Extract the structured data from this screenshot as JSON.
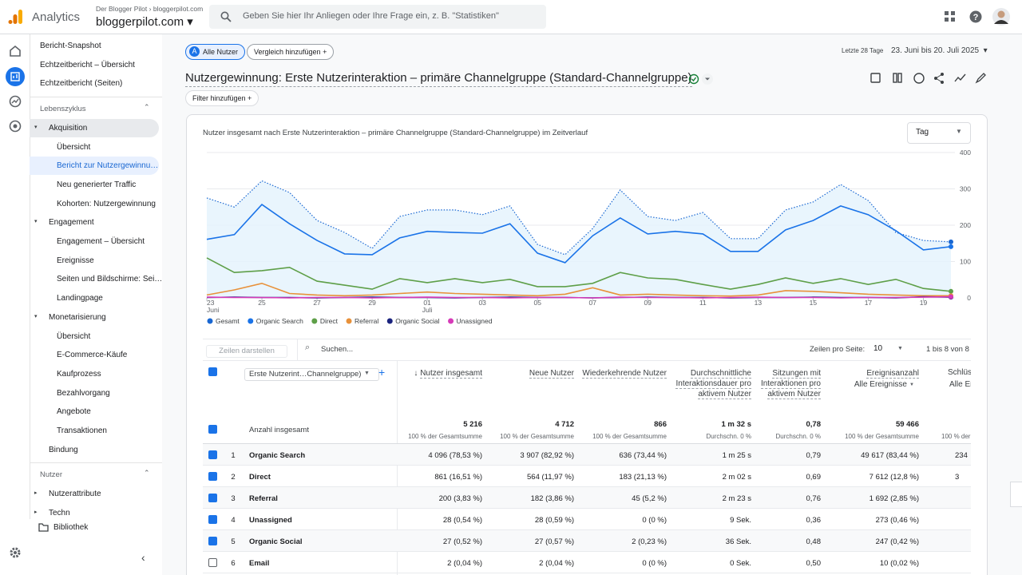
{
  "header": {
    "app": "Analytics",
    "account": "Der Blogger Pilot",
    "account_property": "bloggerpilot.com",
    "property": "bloggerpilot.com",
    "search_placeholder": "Geben Sie hier Ihr Anliegen oder Ihre Frage ein, z. B. \"Statistiken\""
  },
  "sidebar": {
    "top_items": [
      "Bericht-Snapshot",
      "Echtzeitbericht – Übersicht",
      "Echtzeitbericht (Seiten)"
    ],
    "sections": [
      {
        "title": "Lebenszyklus",
        "groups": [
          {
            "name": "Akquisition",
            "active": true,
            "items": [
              "Übersicht",
              "Bericht zur Nutzergewinnu…",
              "Neu generierter Traffic",
              "Kohorten: Nutzergewinnung"
            ],
            "selected_item": 1
          },
          {
            "name": "Engagement",
            "items": [
              "Engagement – Übersicht",
              "Ereignisse",
              "Seiten und Bildschirme: Sei…",
              "Landingpage"
            ]
          },
          {
            "name": "Monetarisierung",
            "items": [
              "Übersicht",
              "E-Commerce-Käufe",
              "Kaufprozess",
              "Bezahlvorgang",
              "Angebote",
              "Transaktionen"
            ]
          },
          {
            "name": "Bindung",
            "items": []
          }
        ]
      },
      {
        "title": "Nutzer",
        "groups": [
          {
            "name": "Nutzerattribute",
            "collapsed": true,
            "items": []
          },
          {
            "name": "Techn",
            "collapsed": true,
            "items": []
          }
        ]
      }
    ],
    "library": "Bibliothek"
  },
  "toolbar": {
    "segment_badge": "A",
    "segment": "Alle Nutzer",
    "compare": "Vergleich hinzufügen",
    "date_range_label": "Letzte 28 Tage",
    "date_range": "23. Juni bis 20. Juli 2025",
    "report_title": "Nutzergewinnung: Erste Nutzerinteraktion – primäre Channelgruppe (Standard-Channelgruppe)",
    "filter": "Filter hinzufügen"
  },
  "chart_data": {
    "type": "line",
    "title": "Nutzer insgesamt nach Erste Nutzerinteraktion – primäre Channelgruppe (Standard-Channelgruppe) im Zeitverlauf",
    "granularity": "Tag",
    "categories": [
      "23",
      null,
      "25",
      null,
      "27",
      null,
      "29",
      null,
      "01",
      null,
      "03",
      null,
      "05",
      null,
      "07",
      null,
      "09",
      null,
      "11",
      null,
      "13",
      null,
      "15",
      null,
      "17",
      null,
      "19",
      null
    ],
    "months": [
      "Juni",
      null,
      null,
      null,
      null,
      null,
      null,
      null,
      "Juli",
      null,
      null,
      null,
      null,
      null,
      null,
      null,
      null,
      null,
      null,
      null,
      null,
      null,
      null,
      null,
      null,
      null,
      null,
      null
    ],
    "ylim": [
      0,
      400
    ],
    "yticks": [
      0,
      100,
      200,
      300,
      400
    ],
    "grid": true,
    "series": [
      {
        "name": "Gesamt",
        "color": "#1967d2",
        "dotted": true,
        "area": true,
        "values": [
          275,
          250,
          322,
          290,
          213,
          180,
          136,
          224,
          242,
          242,
          229,
          253,
          147,
          119,
          191,
          297,
          224,
          213,
          235,
          163,
          163,
          242,
          264,
          312,
          268,
          180,
          158,
          154
        ]
      },
      {
        "name": "Organic Search",
        "color": "#1a73e8",
        "values": [
          161,
          174,
          257,
          204,
          158,
          121,
          119,
          165,
          183,
          180,
          178,
          204,
          123,
          97,
          171,
          220,
          176,
          183,
          176,
          128,
          128,
          187,
          213,
          253,
          229,
          185,
          132,
          141
        ]
      },
      {
        "name": "Direct",
        "color": "#5e9f48",
        "values": [
          110,
          70,
          75,
          84,
          46,
          35,
          24,
          53,
          42,
          53,
          42,
          51,
          31,
          31,
          40,
          70,
          55,
          51,
          37,
          24,
          37,
          55,
          40,
          53,
          37,
          51,
          26,
          18
        ]
      },
      {
        "name": "Referral",
        "color": "#e8913a",
        "values": [
          8,
          22,
          40,
          12,
          8,
          6,
          8,
          12,
          16,
          12,
          10,
          8,
          6,
          10,
          28,
          8,
          10,
          8,
          6,
          5,
          8,
          20,
          18,
          14,
          10,
          8,
          6,
          6
        ]
      },
      {
        "name": "Organic Social",
        "color": "#1a237e",
        "values": [
          1,
          2,
          1,
          1,
          0,
          1,
          2,
          1,
          1,
          0,
          1,
          2,
          1,
          1,
          0,
          1,
          2,
          1,
          1,
          0,
          1,
          1,
          2,
          1,
          1,
          0,
          3,
          2
        ]
      },
      {
        "name": "Unassigned",
        "color": "#d63ab8",
        "values": [
          2,
          1,
          1,
          0,
          1,
          1,
          0,
          1,
          2,
          1,
          1,
          0,
          1,
          1,
          0,
          2,
          1,
          1,
          0,
          1,
          2,
          1,
          1,
          0,
          1,
          1,
          2,
          3
        ]
      }
    ]
  },
  "table": {
    "show_rows": "Zeilen darstellen",
    "search": "Suchen...",
    "rows_per_page_label": "Zeilen pro Seite:",
    "rows_per_page": 10,
    "pagination": "1 bis 8 von 8",
    "dimension": "Erste Nutzerint…Channelgruppe)",
    "totals_label": "Anzahl insgesamt",
    "columns": [
      {
        "title": "Nutzer insgesamt",
        "sorted": true
      },
      {
        "title": "Neue Nutzer"
      },
      {
        "title": "Wiederkehrende Nutzer"
      },
      {
        "title": "Durchschnittliche Interaktionsdauer pro aktivem Nutzer"
      },
      {
        "title": "Sitzungen mit Interaktionen pro aktivem Nutzer"
      },
      {
        "title": "Ereignisanzahl",
        "subtitle": "Alle Ereignisse"
      }
    ],
    "totals": [
      {
        "value": "5 216",
        "note": "100 % der Gesamtsumme"
      },
      {
        "value": "4 712",
        "note": "100 % der Gesamtsumme"
      },
      {
        "value": "866",
        "note": "100 % der Gesamtsumme"
      },
      {
        "value": "1 m 32 s",
        "note": "Durchschn. 0 %"
      },
      {
        "value": "0,78",
        "note": "Durchschn. 0 %"
      },
      {
        "value": "59 466",
        "note": "100 % der Gesamtsumme"
      }
    ],
    "partial_column": {
      "title": "Schlüs",
      "subtitle": "Alle Er",
      "note": "100 % der",
      "cells": [
        "234",
        "3"
      ]
    },
    "rows": [
      {
        "rank": 1,
        "name": "Organic Search",
        "selected": true,
        "cells": [
          "4 096 (78,53 %)",
          "3 907 (82,92 %)",
          "636 (73,44 %)",
          "1 m 25 s",
          "0,79",
          "49 617 (83,44 %)"
        ]
      },
      {
        "rank": 2,
        "name": "Direct",
        "selected": true,
        "cells": [
          "861 (16,51 %)",
          "564 (11,97 %)",
          "183 (21,13 %)",
          "2 m 02 s",
          "0,69",
          "7 612 (12,8 %)"
        ]
      },
      {
        "rank": 3,
        "name": "Referral",
        "selected": true,
        "cells": [
          "200 (3,83 %)",
          "182 (3,86 %)",
          "45 (5,2 %)",
          "2 m 23 s",
          "0,76",
          "1 692 (2,85 %)"
        ]
      },
      {
        "rank": 4,
        "name": "Unassigned",
        "selected": true,
        "cells": [
          "28 (0,54 %)",
          "28 (0,59 %)",
          "0 (0 %)",
          "9 Sek.",
          "0,36",
          "273 (0,46 %)"
        ]
      },
      {
        "rank": 5,
        "name": "Organic Social",
        "selected": true,
        "cells": [
          "27 (0,52 %)",
          "27 (0,57 %)",
          "2 (0,23 %)",
          "36 Sek.",
          "0,48",
          "247 (0,42 %)"
        ]
      },
      {
        "rank": 6,
        "name": "Email",
        "selected": false,
        "cells": [
          "2 (0,04 %)",
          "2 (0,04 %)",
          "0 (0 %)",
          "0 Sek.",
          "0,50",
          "10 (0,02 %)"
        ]
      }
    ]
  }
}
